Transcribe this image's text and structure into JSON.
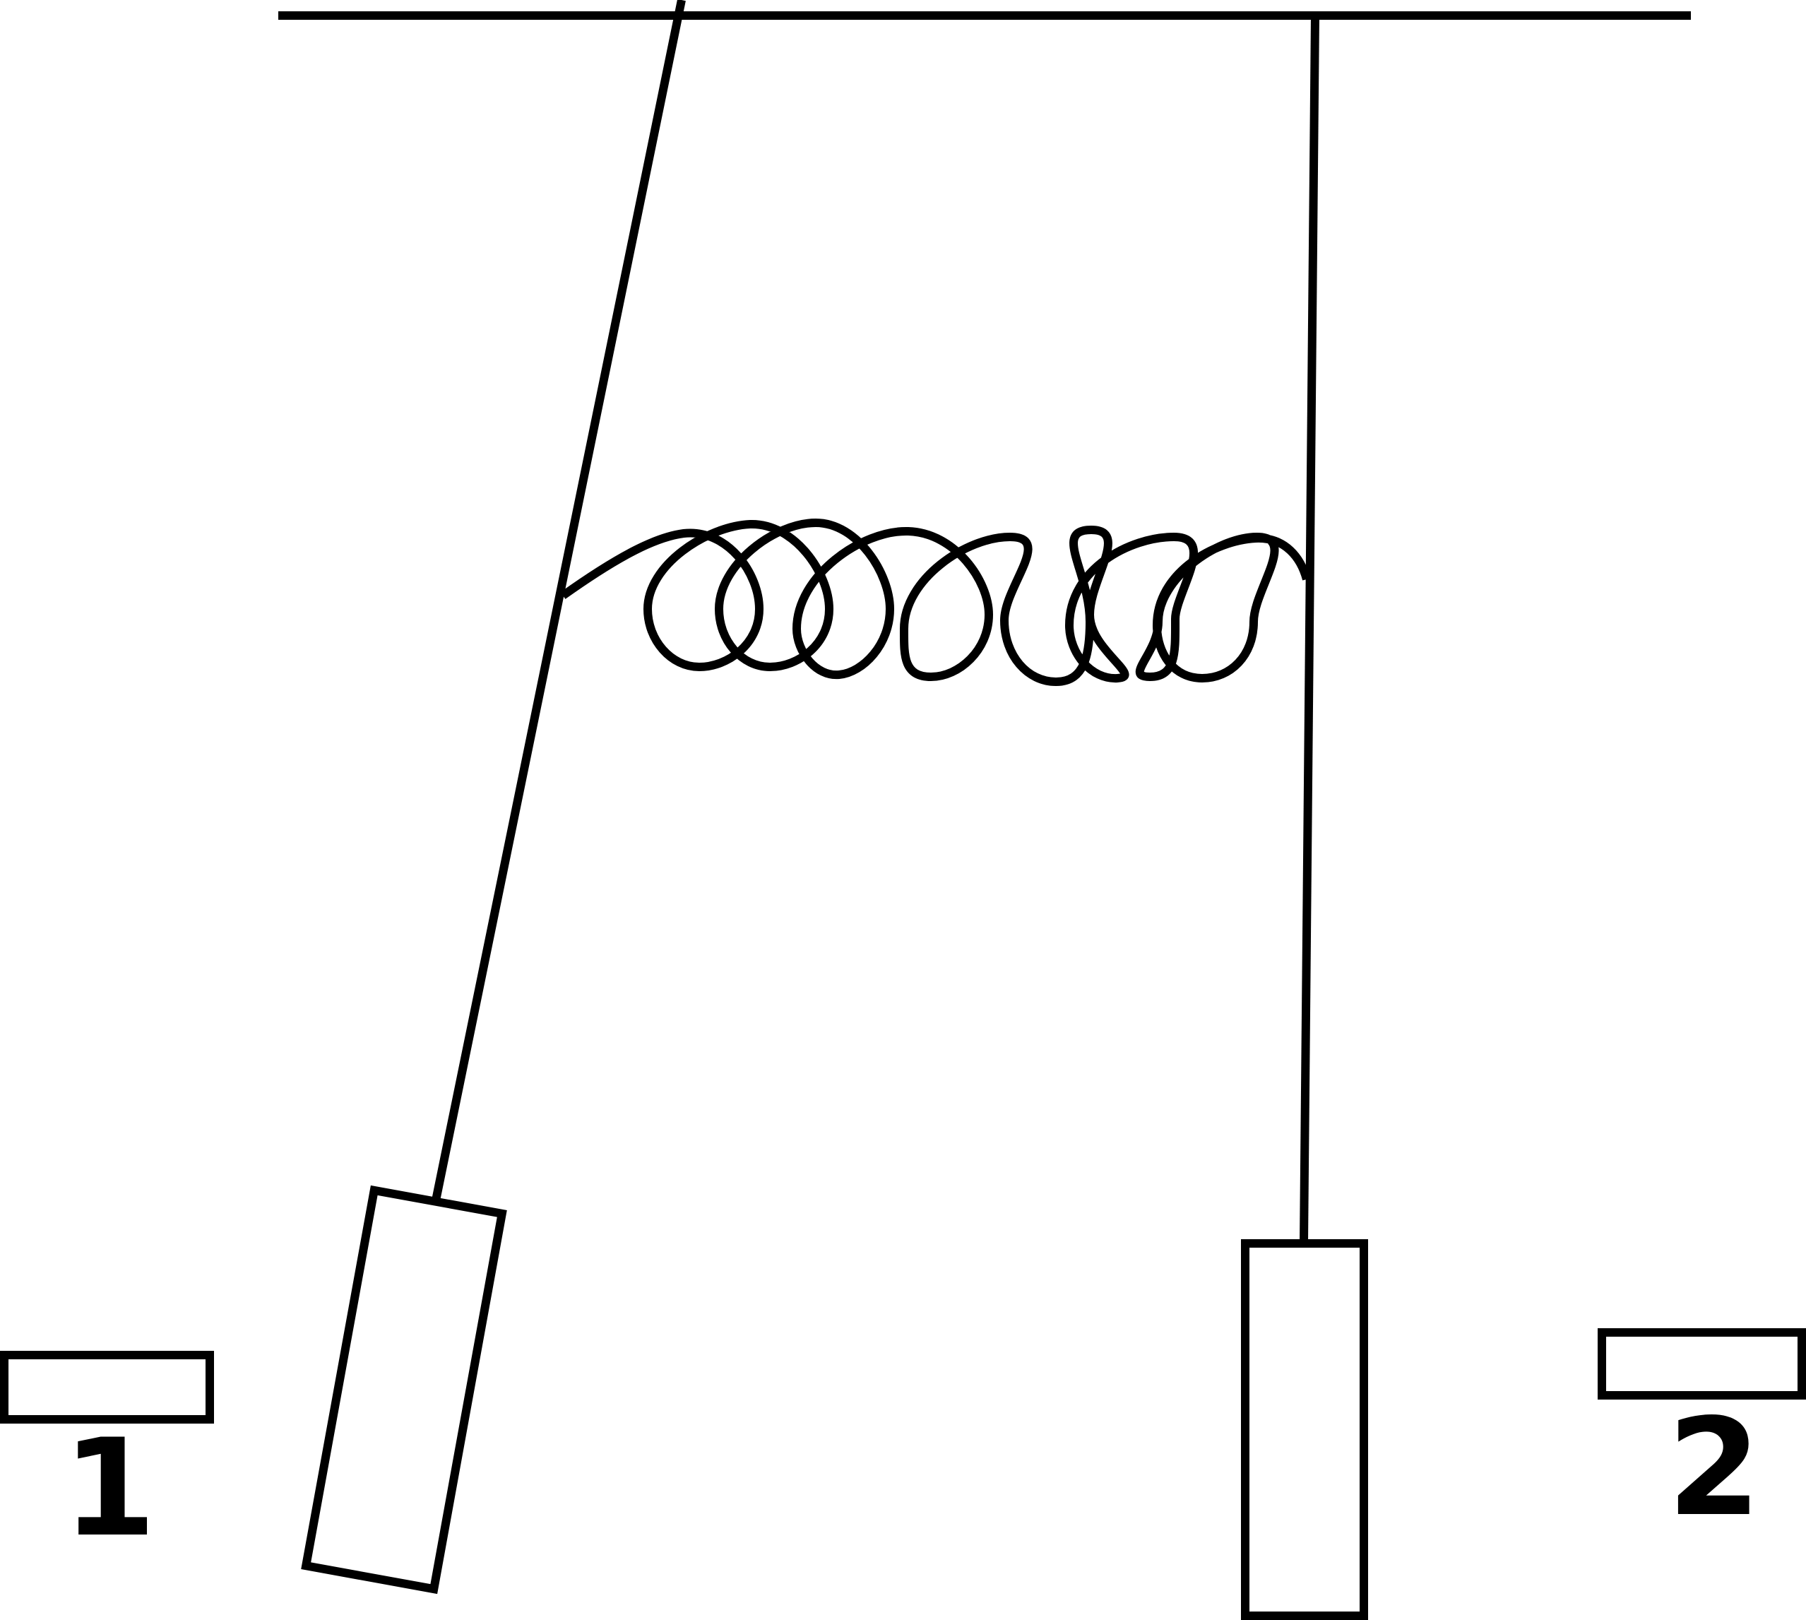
{
  "labels": {
    "plate_1": "1",
    "plate_2": "2"
  },
  "colors": {
    "stroke": "#000000",
    "background": "#ffffff"
  }
}
